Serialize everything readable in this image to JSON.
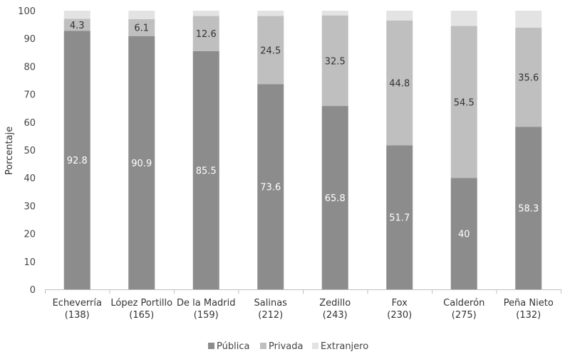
{
  "chart_data": {
    "type": "bar",
    "stacked": true,
    "ylabel": "Porcentaje",
    "ylim": [
      0,
      100
    ],
    "yticks": [
      0,
      10,
      20,
      30,
      40,
      50,
      60,
      70,
      80,
      90,
      100
    ],
    "grid": false,
    "legend_position": "bottom",
    "categories": [
      {
        "name": "Echeverría",
        "n": "(138)"
      },
      {
        "name": "López Portillo",
        "n": "(165)"
      },
      {
        "name": "De la Madrid",
        "n": "(159)"
      },
      {
        "name": "Salinas",
        "n": "(212)"
      },
      {
        "name": "Zedillo",
        "n": "(243)"
      },
      {
        "name": "Fox",
        "n": "(230)"
      },
      {
        "name": "Calderón",
        "n": "(275)"
      },
      {
        "name": "Peña Nieto",
        "n": "(132)"
      }
    ],
    "series": [
      {
        "name": "Pública",
        "color": "#8c8c8c",
        "label_color": "#ffffff",
        "values": [
          92.8,
          90.9,
          85.5,
          73.6,
          65.8,
          51.7,
          40,
          58.3
        ],
        "labels": [
          "92.8",
          "90.9",
          "85.5",
          "73.6",
          "65.8",
          "51.7",
          "40",
          "58.3"
        ]
      },
      {
        "name": "Privada",
        "color": "#bfbfbf",
        "label_color": "#333333",
        "values": [
          4.3,
          6.1,
          12.6,
          24.5,
          32.5,
          44.8,
          54.5,
          35.6
        ],
        "labels": [
          "4.3",
          "6.1",
          "12.6",
          "24.5",
          "32.5",
          "44.8",
          "54.5",
          "35.6"
        ]
      },
      {
        "name": "Extranjero",
        "color": "#e3e3e3",
        "label_color": "#333333",
        "values": [
          2.9,
          3.0,
          1.9,
          1.9,
          1.7,
          3.5,
          5.5,
          6.1
        ],
        "labels": null
      }
    ]
  }
}
